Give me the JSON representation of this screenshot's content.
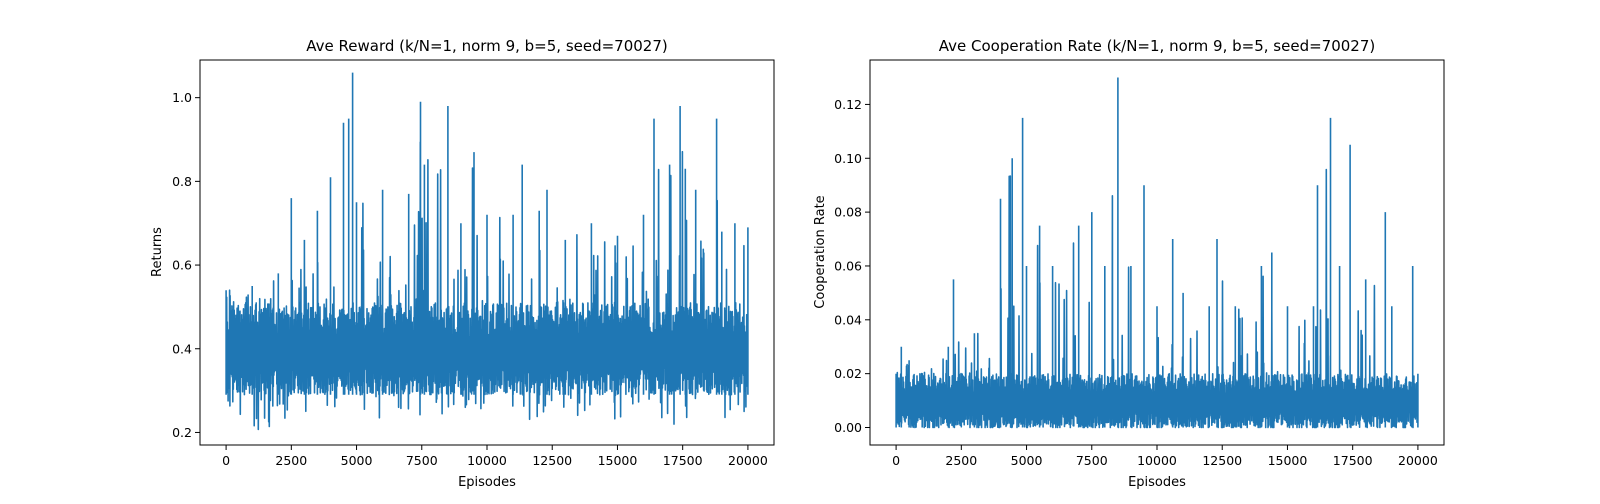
{
  "chart_data": [
    {
      "type": "line",
      "title": "Ave Reward (k/N=1, norm 9, b=5, seed=70027)",
      "xlabel": "Episodes",
      "ylabel": "Returns",
      "xlim": [
        -1000,
        21000
      ],
      "ylim": [
        0.17,
        1.09
      ],
      "xticks": [
        0,
        2500,
        5000,
        7500,
        10000,
        12500,
        15000,
        17500,
        20000
      ],
      "yticks": [
        0.2,
        0.4,
        0.6,
        0.8,
        1.0
      ],
      "xtick_labels": [
        "0",
        "2500",
        "5000",
        "7500",
        "10000",
        "12500",
        "15000",
        "17500",
        "20000"
      ],
      "ytick_labels": [
        "0.2",
        "0.4",
        "0.6",
        "0.8",
        "1.0"
      ],
      "grid": false,
      "color": "#1f77b4",
      "series": [
        {
          "x_range": [
            0,
            20000
          ],
          "n_points": 20000,
          "envelope_x": [
            0,
            1000,
            2000,
            2500,
            3000,
            3500,
            4000,
            4500,
            4700,
            4850,
            5000,
            6000,
            7000,
            7450,
            7600,
            8500,
            9000,
            9500,
            10000,
            11000,
            11350,
            12000,
            12300,
            13000,
            14000,
            15000,
            16000,
            16400,
            17000,
            17400,
            17600,
            18000,
            18800,
            19000,
            19500,
            20000
          ],
          "envelope_high": [
            0.54,
            0.55,
            0.58,
            0.76,
            0.66,
            0.73,
            0.81,
            0.94,
            0.95,
            1.06,
            0.75,
            0.78,
            0.77,
            0.99,
            0.84,
            0.98,
            0.7,
            0.87,
            0.72,
            0.72,
            0.84,
            0.73,
            0.78,
            0.66,
            0.7,
            0.67,
            0.72,
            0.95,
            0.84,
            0.98,
            0.83,
            0.78,
            0.95,
            0.68,
            0.7,
            0.69
          ],
          "envelope_low": [
            0.23,
            0.2,
            0.22,
            0.24,
            0.25,
            0.24,
            0.25,
            0.23,
            0.23,
            0.21,
            0.22,
            0.23,
            0.24,
            0.23,
            0.24,
            0.24,
            0.23,
            0.23,
            0.24,
            0.23,
            0.22,
            0.23,
            0.24,
            0.24,
            0.24,
            0.23,
            0.22,
            0.22,
            0.23,
            0.2,
            0.23,
            0.22,
            0.22,
            0.23,
            0.24,
            0.24
          ],
          "typical_band": [
            0.29,
            0.51
          ]
        }
      ]
    },
    {
      "type": "line",
      "title": "Ave Cooperation Rate (k/N=1, norm 9, b=5, seed=70027)",
      "xlabel": "Episodes",
      "ylabel": "Cooperation Rate",
      "xlim": [
        -1000,
        21000
      ],
      "ylim": [
        -0.0065,
        0.1365
      ],
      "xticks": [
        0,
        2500,
        5000,
        7500,
        10000,
        12500,
        15000,
        17500,
        20000
      ],
      "yticks": [
        0.0,
        0.02,
        0.04,
        0.06,
        0.08,
        0.1,
        0.12
      ],
      "xtick_labels": [
        "0",
        "2500",
        "5000",
        "7500",
        "10000",
        "12500",
        "15000",
        "17500",
        "20000"
      ],
      "ytick_labels": [
        "0.00",
        "0.02",
        "0.04",
        "0.06",
        "0.08",
        "0.10",
        "0.12"
      ],
      "grid": false,
      "color": "#1f77b4",
      "series": [
        {
          "x_range": [
            0,
            20000
          ],
          "n_points": 20000,
          "envelope_x": [
            0,
            200,
            500,
            1000,
            2000,
            2200,
            3000,
            4000,
            4450,
            4850,
            5000,
            5500,
            6000,
            7000,
            7500,
            8000,
            8500,
            9000,
            9500,
            10000,
            10600,
            11000,
            12000,
            12300,
            13000,
            14000,
            14400,
            15000,
            16000,
            16150,
            16650,
            17000,
            17400,
            18000,
            18750,
            19000,
            19800,
            20000
          ],
          "envelope_high": [
            0.02,
            0.03,
            0.025,
            0.02,
            0.03,
            0.055,
            0.035,
            0.085,
            0.1,
            0.115,
            0.06,
            0.075,
            0.06,
            0.075,
            0.08,
            0.06,
            0.13,
            0.06,
            0.09,
            0.045,
            0.07,
            0.05,
            0.045,
            0.07,
            0.045,
            0.06,
            0.065,
            0.045,
            0.045,
            0.09,
            0.115,
            0.06,
            0.105,
            0.055,
            0.08,
            0.045,
            0.06,
            0.02
          ],
          "envelope_low": [
            0.0,
            0.0,
            0.0,
            0.0,
            0.0,
            0.0,
            0.0,
            0.0,
            0.0,
            0.0,
            0.0,
            0.0,
            0.0,
            0.0,
            0.0,
            0.0,
            0.0,
            0.0,
            0.0,
            0.0,
            0.0,
            0.0,
            0.0,
            0.0,
            0.0,
            0.0,
            0.0,
            0.0,
            0.0,
            0.0,
            0.0,
            0.0,
            0.0,
            0.0,
            0.0,
            0.0,
            0.0,
            0.0
          ],
          "typical_band": [
            0.0,
            0.02
          ]
        }
      ]
    }
  ]
}
